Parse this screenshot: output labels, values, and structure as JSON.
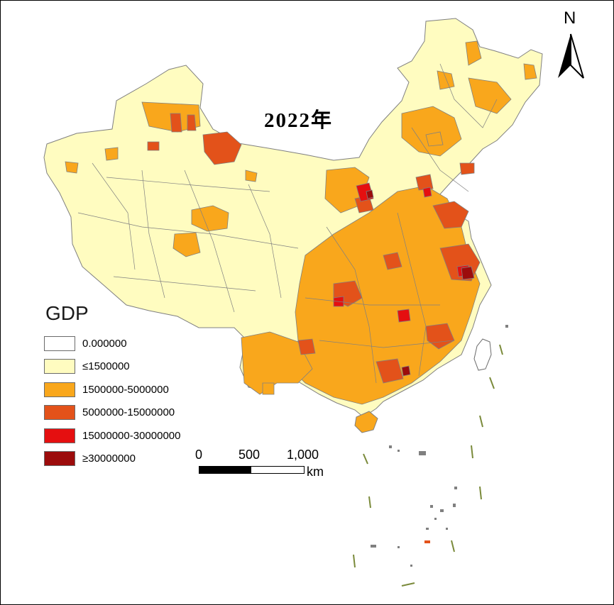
{
  "title": "2022年",
  "north_arrow": {
    "label": "N"
  },
  "legend": {
    "title": "GDP",
    "items": [
      {
        "label": "0.000000",
        "color": "#ffffff"
      },
      {
        "label": "≤1500000",
        "color": "#fffcc0"
      },
      {
        "label": "1500000-5000000",
        "color": "#f9a71c"
      },
      {
        "label": "5000000-15000000",
        "color": "#e3521a"
      },
      {
        "label": "15000000-30000000",
        "color": "#e50f10"
      },
      {
        "label": "≥30000000",
        "color": "#9c0c0c"
      }
    ]
  },
  "scale_bar": {
    "ticks": [
      "0",
      "500",
      "1,000"
    ],
    "unit": "km"
  },
  "colors": {
    "boundary": "#808080",
    "dash_line": "#7a8a3a"
  }
}
